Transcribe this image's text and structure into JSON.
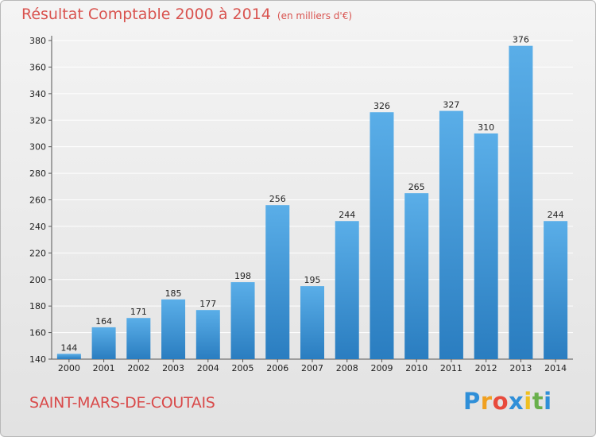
{
  "header": {
    "title": "Résultat Comptable 2000 à 2014",
    "subtitle": "(en milliers d'€)"
  },
  "footer": {
    "commune": "SAINT-MARS-DE-COUTAIS",
    "brand": {
      "letters": [
        "P",
        "r",
        "o",
        "x",
        "i",
        "t",
        "i"
      ],
      "colors": [
        "#2f8fd8",
        "#f0a020",
        "#e84a3c",
        "#2f8fd8",
        "#f0c020",
        "#6ab04c",
        "#2f8fd8"
      ]
    }
  },
  "colors": {
    "title": "#d9534f",
    "bar_light": "#5aaee8",
    "bar_dark": "#2a7dc0",
    "grid": "#ffffff",
    "axis_text": "#222222"
  },
  "chart_data": {
    "type": "bar",
    "title": "Résultat Comptable 2000 à 2014",
    "subtitle": "(en milliers d'€)",
    "xlabel": "",
    "ylabel": "",
    "categories": [
      "2000",
      "2001",
      "2002",
      "2003",
      "2004",
      "2005",
      "2006",
      "2007",
      "2008",
      "2009",
      "2010",
      "2011",
      "2012",
      "2013",
      "2014"
    ],
    "values": [
      144,
      164,
      171,
      185,
      177,
      198,
      256,
      195,
      244,
      326,
      265,
      327,
      310,
      376,
      244
    ],
    "ylim": [
      140,
      380
    ],
    "yticks": [
      140,
      160,
      180,
      200,
      220,
      240,
      260,
      280,
      300,
      320,
      340,
      360,
      380
    ],
    "grid": true,
    "legend": "none"
  }
}
